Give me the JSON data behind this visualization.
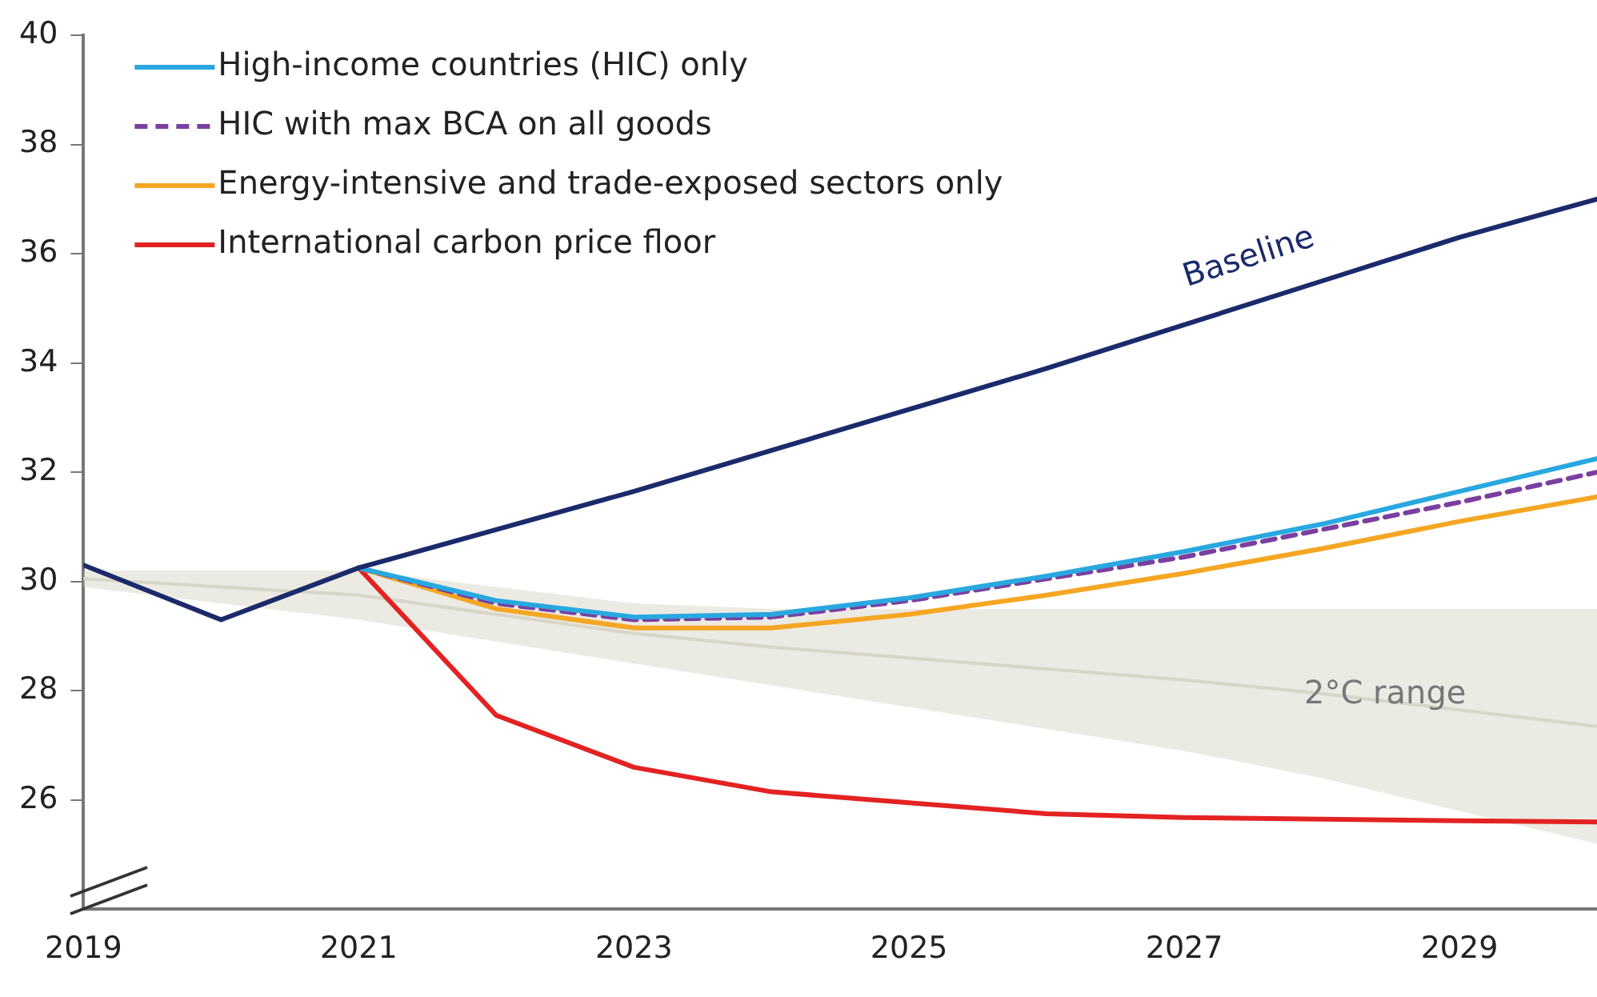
{
  "chart_data": {
    "type": "line",
    "x": [
      2019,
      2020,
      2021,
      2022,
      2023,
      2024,
      2025,
      2026,
      2027,
      2028,
      2029,
      2030
    ],
    "xlim": [
      2019,
      2030
    ],
    "xticks": [
      2019,
      2021,
      2023,
      2025,
      2027,
      2029
    ],
    "ylim": [
      24,
      40
    ],
    "yticks": [
      26,
      28,
      30,
      32,
      34,
      36,
      38,
      40
    ],
    "grid": false,
    "legend": "top left",
    "marker": "none",
    "series": [
      {
        "color": "#d8d6c8",
        "values": [
          30.05,
          29.9,
          29.75,
          29.4,
          29.05,
          28.8,
          28.6,
          28.4,
          28.2,
          27.95,
          27.65,
          27.35
        ],
        "lower": [
          29.9,
          29.6,
          29.3,
          28.9,
          28.5,
          28.1,
          27.7,
          27.3,
          26.9,
          26.4,
          25.8,
          25.2
        ],
        "upper": [
          30.2,
          30.2,
          30.2,
          29.9,
          29.6,
          29.5,
          29.5,
          29.5,
          29.5,
          29.5,
          29.5,
          29.5
        ]
      },
      {
        "color": "#1b2a6b",
        "values": [
          30.3,
          29.3,
          30.25,
          30.95,
          31.65,
          32.4,
          33.15,
          33.9,
          34.7,
          35.5,
          36.3,
          37.0
        ]
      },
      {
        "name": "High-income countries (HIC) only",
        "color": "#29a8e0",
        "values": [
          null,
          null,
          30.25,
          29.65,
          29.35,
          29.4,
          29.7,
          30.1,
          30.55,
          31.05,
          31.65,
          32.25
        ]
      },
      {
        "name": "HIC with max BCA on all goods",
        "color": "#7b3fa0",
        "line_style": "dashed",
        "values": [
          null,
          null,
          30.25,
          29.6,
          29.3,
          29.35,
          29.65,
          30.05,
          30.45,
          30.95,
          31.45,
          32.0
        ]
      },
      {
        "name": "Energy-intensive and trade-exposed sectors only",
        "color": "#f5a623",
        "values": [
          null,
          null,
          30.25,
          29.5,
          29.15,
          29.15,
          29.4,
          29.75,
          30.15,
          30.6,
          31.1,
          31.55
        ]
      },
      {
        "name": "International carbon price floor",
        "color": "#e32222",
        "values": [
          null,
          null,
          30.25,
          27.55,
          26.6,
          26.15,
          25.95,
          25.75,
          25.68,
          25.65,
          25.62,
          25.6
        ]
      }
    ],
    "annotations": [
      "Baseline",
      "2°C range"
    ]
  }
}
